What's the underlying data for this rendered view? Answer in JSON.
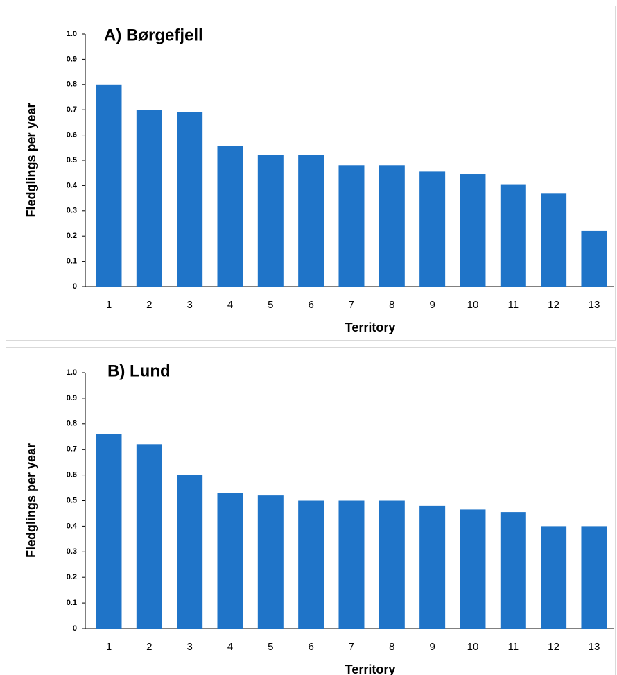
{
  "chart_data": [
    {
      "type": "bar",
      "title": "A) Børgefjell",
      "x_label": "Territory",
      "y_label": "Fledglings per year",
      "categories": [
        "1",
        "2",
        "3",
        "4",
        "5",
        "6",
        "7",
        "8",
        "9",
        "10",
        "11",
        "12",
        "13"
      ],
      "values": [
        0.8,
        0.7,
        0.69,
        0.555,
        0.52,
        0.52,
        0.48,
        0.48,
        0.455,
        0.445,
        0.405,
        0.37,
        0.22
      ],
      "color": "#1f74c8",
      "ylim": [
        0,
        1
      ],
      "yticks": [
        0,
        0.1,
        0.2,
        0.3,
        0.4,
        0.5,
        0.6,
        0.7,
        0.8,
        0.9,
        {
          "value": 1,
          "label": "1.0"
        }
      ],
      "grid": false
    },
    {
      "type": "bar",
      "title": "B) Lund",
      "x_label": "Territory",
      "y_label": "Fledglings per year",
      "categories": [
        "1",
        "2",
        "3",
        "4",
        "5",
        "6",
        "7",
        "8",
        "9",
        "10",
        "11",
        "12",
        "13"
      ],
      "values": [
        0.76,
        0.72,
        0.6,
        0.53,
        0.52,
        0.5,
        0.5,
        0.5,
        0.48,
        0.465,
        0.455,
        0.4,
        0.4
      ],
      "color": "#1f74c8",
      "ylim": [
        0,
        1
      ],
      "yticks": [
        0,
        0.1,
        0.2,
        0.3,
        0.4,
        0.5,
        0.6,
        0.7,
        0.8,
        0.9,
        {
          "value": 1,
          "label": "1.0"
        }
      ],
      "grid": false
    }
  ]
}
